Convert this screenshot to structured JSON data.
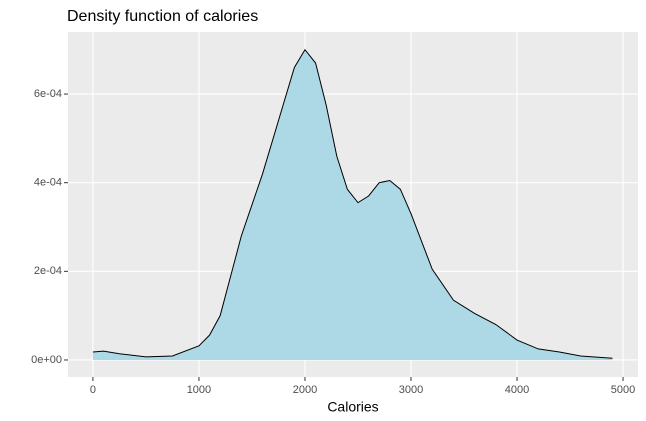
{
  "chart_data": {
    "type": "area",
    "title": "Density function of calories",
    "x_label": "Calories",
    "x": [
      0,
      100,
      250,
      500,
      750,
      1000,
      1100,
      1200,
      1300,
      1400,
      1600,
      1800,
      1900,
      2000,
      2100,
      2200,
      2300,
      2400,
      2500,
      2600,
      2700,
      2800,
      2900,
      3000,
      3200,
      3400,
      3600,
      3800,
      4000,
      4200,
      4400,
      4600,
      4900
    ],
    "values": [
      1.8e-05,
      2e-05,
      1.4e-05,
      7e-06,
      9e-06,
      3.2e-05,
      5.6e-05,
      0.0001,
      0.00019,
      0.00028,
      0.00042,
      0.00058,
      0.00066,
      0.0007,
      0.00067,
      0.000575,
      0.00046,
      0.000385,
      0.000355,
      0.00037,
      0.0004,
      0.000405,
      0.000385,
      0.00033,
      0.000205,
      0.000135,
      0.000105,
      8e-05,
      4.5e-05,
      2.5e-05,
      1.8e-05,
      9e-06,
      4e-06
    ],
    "color": "#add8e6",
    "line_color": "#000000",
    "xlim": [
      -235,
      5141
    ],
    "xticks": [
      0,
      1000,
      2000,
      3000,
      4000,
      5000
    ],
    "ylim": [
      -3.84e-05,
      0.00074
    ],
    "yticks": [
      {
        "value": 0,
        "label": "0e+00"
      },
      {
        "value": 0.0002,
        "label": "2e-04"
      },
      {
        "value": 0.0004,
        "label": "4e-04"
      },
      {
        "value": 0.0006,
        "label": "6e-04"
      }
    ],
    "grid": true
  }
}
